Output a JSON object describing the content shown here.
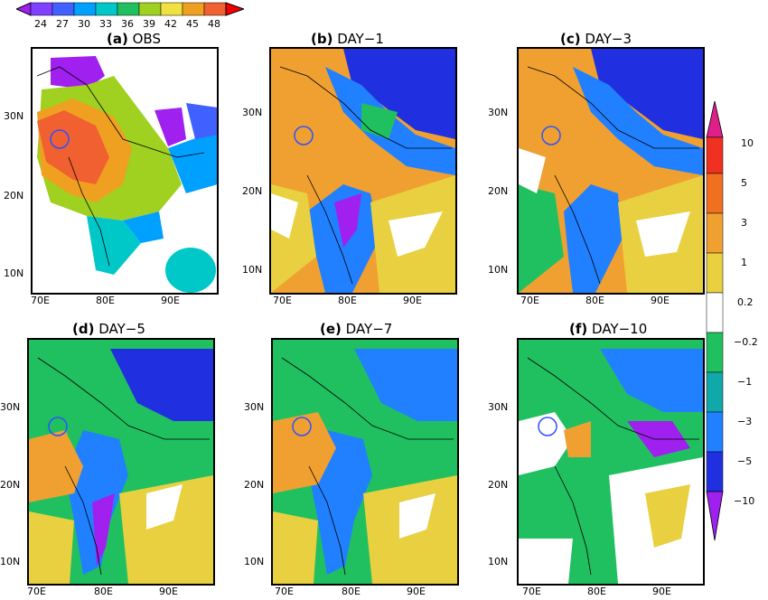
{
  "top_colorbar": {
    "labels": [
      "24",
      "27",
      "30",
      "33",
      "36",
      "39",
      "42",
      "45",
      "48"
    ],
    "colors": [
      "#a020f0",
      "#8040ff",
      "#4060ff",
      "#00a0ff",
      "#00c8c8",
      "#20c060",
      "#a0d020",
      "#f0e040",
      "#f0a020",
      "#f06030",
      "#f00000"
    ]
  },
  "right_colorbar": {
    "labels": [
      "10",
      "5",
      "3",
      "1",
      "0.2",
      "−0.2",
      "−1",
      "−3",
      "−5",
      "−10"
    ],
    "colors": [
      "#e0208a",
      "#f03020",
      "#f07020",
      "#f0a030",
      "#e8d040",
      "#ffffff",
      "#20c060",
      "#10a8a8",
      "#2080ff",
      "#2030e0",
      "#a020f0"
    ]
  },
  "panels": [
    {
      "tag": "(a)",
      "name": "OBS"
    },
    {
      "tag": "(b)",
      "name": "DAY−1"
    },
    {
      "tag": "(c)",
      "name": "DAY−3"
    },
    {
      "tag": "(d)",
      "name": "DAY−5"
    },
    {
      "tag": "(e)",
      "name": "DAY−7"
    },
    {
      "tag": "(f)",
      "name": "DAY−10"
    }
  ],
  "axes": {
    "lat_ticks": [
      "30N",
      "20N",
      "10N"
    ],
    "lon_ticks": [
      "70E",
      "80E",
      "90E"
    ]
  }
}
